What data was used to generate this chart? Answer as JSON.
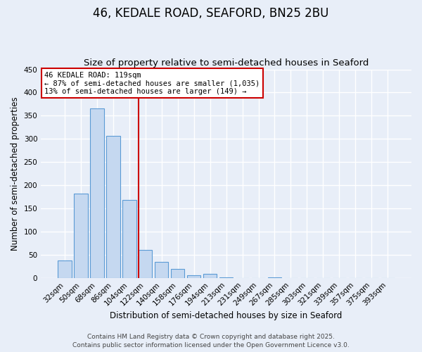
{
  "title": "46, KEDALE ROAD, SEAFORD, BN25 2BU",
  "subtitle": "Size of property relative to semi-detached houses in Seaford",
  "xlabel": "Distribution of semi-detached houses by size in Seaford",
  "ylabel": "Number of semi-detached properties",
  "bar_labels": [
    "32sqm",
    "50sqm",
    "68sqm",
    "86sqm",
    "104sqm",
    "122sqm",
    "140sqm",
    "158sqm",
    "176sqm",
    "194sqm",
    "213sqm",
    "231sqm",
    "249sqm",
    "267sqm",
    "285sqm",
    "303sqm",
    "321sqm",
    "339sqm",
    "357sqm",
    "375sqm",
    "393sqm"
  ],
  "bar_values": [
    38,
    182,
    365,
    307,
    168,
    60,
    35,
    19,
    5,
    8,
    1,
    0,
    0,
    1,
    0,
    0,
    0,
    0,
    0,
    0,
    0
  ],
  "bar_color": "#c5d8f0",
  "bar_edge_color": "#5b9bd5",
  "vline_color": "#cc0000",
  "annotation_title": "46 KEDALE ROAD: 119sqm",
  "annotation_line1": "← 87% of semi-detached houses are smaller (1,035)",
  "annotation_line2": "13% of semi-detached houses are larger (149) →",
  "annotation_box_color": "#ffffff",
  "annotation_box_edge": "#cc0000",
  "ylim": [
    0,
    450
  ],
  "yticks": [
    0,
    50,
    100,
    150,
    200,
    250,
    300,
    350,
    400,
    450
  ],
  "bg_color": "#e8eef8",
  "footer1": "Contains HM Land Registry data © Crown copyright and database right 2025.",
  "footer2": "Contains public sector information licensed under the Open Government Licence v3.0.",
  "title_fontsize": 12,
  "subtitle_fontsize": 9.5,
  "axis_label_fontsize": 8.5,
  "tick_fontsize": 7.5,
  "footer_fontsize": 6.5,
  "vline_bar_index": 5
}
